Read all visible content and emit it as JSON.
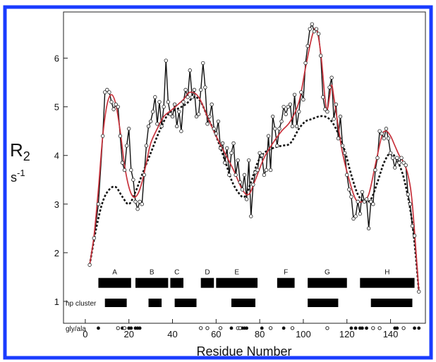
{
  "chart_data": {
    "type": "line",
    "title": "",
    "xlabel": "Residue Number",
    "ylabel": "R",
    "ylabel_subscript": "2",
    "yunit": "s",
    "yunit_superscript": "-1",
    "xlim": [
      -10,
      156
    ],
    "ylim": [
      0.55,
      6.95
    ],
    "xticks": [
      0,
      20,
      40,
      60,
      80,
      100,
      120,
      140
    ],
    "yticks": [
      1,
      2,
      3,
      4,
      5,
      6
    ],
    "grid": false,
    "legend": "none",
    "colors": {
      "frame": "#1a3cff",
      "experimental": "#111111",
      "fit": "#c8323c",
      "model": "#111111",
      "bars": "#000000"
    },
    "series": [
      {
        "style": "black-line-open-circles",
        "points": [
          [
            2,
            1.75
          ],
          [
            4,
            2.3
          ],
          [
            6,
            3.0
          ],
          [
            8,
            4.4
          ],
          [
            9,
            5.3
          ],
          [
            10,
            5.35
          ],
          [
            11,
            5.3
          ],
          [
            12,
            5.1
          ],
          [
            13,
            4.95
          ],
          [
            14,
            5.05
          ],
          [
            15,
            5.0
          ],
          [
            16,
            4.4
          ],
          [
            17,
            3.85
          ],
          [
            18,
            3.7
          ],
          [
            19,
            4.2
          ],
          [
            20,
            4.55
          ],
          [
            21,
            3.7
          ],
          [
            22,
            3.5
          ],
          [
            23,
            3.05
          ],
          [
            24,
            2.9
          ],
          [
            25,
            3.05
          ],
          [
            26,
            3.0
          ],
          [
            27,
            3.6
          ],
          [
            28,
            4.2
          ],
          [
            29,
            4.6
          ],
          [
            30,
            4.7
          ],
          [
            31,
            4.9
          ],
          [
            32,
            5.2
          ],
          [
            33,
            4.65
          ],
          [
            34,
            5.1
          ],
          [
            35,
            4.6
          ],
          [
            36,
            5.0
          ],
          [
            37,
            5.95
          ],
          [
            38,
            5.1
          ],
          [
            39,
            4.85
          ],
          [
            40,
            4.8
          ],
          [
            41,
            5.05
          ],
          [
            42,
            4.6
          ],
          [
            43,
            4.9
          ],
          [
            44,
            4.5
          ],
          [
            45,
            5.1
          ],
          [
            46,
            5.35
          ],
          [
            47,
            5.2
          ],
          [
            48,
            5.75
          ],
          [
            49,
            5.2
          ],
          [
            50,
            5.35
          ],
          [
            51,
            4.8
          ],
          [
            52,
            4.85
          ],
          [
            53,
            5.35
          ],
          [
            54,
            5.9
          ],
          [
            55,
            5.4
          ],
          [
            56,
            4.65
          ],
          [
            57,
            4.8
          ],
          [
            58,
            5.05
          ],
          [
            59,
            4.55
          ],
          [
            60,
            4.45
          ],
          [
            61,
            4.7
          ],
          [
            62,
            4.15
          ],
          [
            63,
            4.25
          ],
          [
            64,
            3.85
          ],
          [
            65,
            4.15
          ],
          [
            66,
            3.6
          ],
          [
            67,
            4.05
          ],
          [
            68,
            4.25
          ],
          [
            69,
            3.6
          ],
          [
            70,
            3.9
          ],
          [
            71,
            3.45
          ],
          [
            72,
            3.3
          ],
          [
            73,
            3.6
          ],
          [
            74,
            3.1
          ],
          [
            75,
            3.9
          ],
          [
            76,
            2.75
          ],
          [
            77,
            3.4
          ],
          [
            78,
            3.65
          ],
          [
            79,
            3.7
          ],
          [
            80,
            4.05
          ],
          [
            81,
            4.0
          ],
          [
            82,
            3.6
          ],
          [
            83,
            3.7
          ],
          [
            84,
            4.4
          ],
          [
            85,
            3.7
          ],
          [
            86,
            4.8
          ],
          [
            87,
            4.55
          ],
          [
            88,
            4.2
          ],
          [
            89,
            4.55
          ],
          [
            90,
            4.7
          ],
          [
            91,
            5.0
          ],
          [
            92,
            4.85
          ],
          [
            93,
            5.0
          ],
          [
            94,
            5.05
          ],
          [
            95,
            4.6
          ],
          [
            96,
            5.25
          ],
          [
            97,
            4.6
          ],
          [
            98,
            4.9
          ],
          [
            99,
            5.3
          ],
          [
            100,
            5.15
          ],
          [
            101,
            5.9
          ],
          [
            102,
            6.25
          ],
          [
            103,
            6.6
          ],
          [
            104,
            6.7
          ],
          [
            105,
            6.55
          ],
          [
            106,
            6.6
          ],
          [
            107,
            6.5
          ],
          [
            108,
            6.05
          ],
          [
            109,
            5.2
          ],
          [
            110,
            4.95
          ],
          [
            111,
            4.9
          ],
          [
            112,
            5.4
          ],
          [
            113,
            5.6
          ],
          [
            114,
            4.75
          ],
          [
            115,
            5.05
          ],
          [
            116,
            4.35
          ],
          [
            117,
            4.8
          ],
          [
            118,
            4.2
          ],
          [
            119,
            4.05
          ],
          [
            120,
            3.6
          ],
          [
            121,
            3.3
          ],
          [
            122,
            3.15
          ],
          [
            123,
            2.7
          ],
          [
            124,
            2.75
          ],
          [
            125,
            3.05
          ],
          [
            126,
            2.8
          ],
          [
            127,
            3.25
          ],
          [
            128,
            3.05
          ],
          [
            129,
            3.1
          ],
          [
            130,
            2.5
          ],
          [
            131,
            3.05
          ],
          [
            132,
            3.0
          ],
          [
            133,
            3.7
          ],
          [
            134,
            3.95
          ],
          [
            135,
            4.5
          ],
          [
            136,
            4.45
          ],
          [
            137,
            4.35
          ],
          [
            138,
            4.55
          ],
          [
            139,
            4.35
          ],
          [
            140,
            4.05
          ],
          [
            141,
            3.95
          ],
          [
            142,
            3.75
          ],
          [
            143,
            3.95
          ],
          [
            144,
            3.85
          ],
          [
            145,
            3.95
          ],
          [
            146,
            3.85
          ],
          [
            147,
            3.8
          ],
          [
            148,
            3.2
          ],
          [
            149,
            3.0
          ],
          [
            150,
            2.55
          ],
          [
            151,
            2.35
          ],
          [
            153,
            1.2
          ]
        ]
      },
      {
        "style": "red-smooth-line",
        "points": [
          [
            2,
            1.75
          ],
          [
            4,
            2.35
          ],
          [
            6,
            3.3
          ],
          [
            8,
            4.4
          ],
          [
            10,
            5.05
          ],
          [
            12,
            5.25
          ],
          [
            14,
            5.05
          ],
          [
            16,
            4.5
          ],
          [
            18,
            3.8
          ],
          [
            20,
            3.35
          ],
          [
            22,
            3.15
          ],
          [
            24,
            3.2
          ],
          [
            26,
            3.45
          ],
          [
            28,
            3.85
          ],
          [
            30,
            4.25
          ],
          [
            33,
            4.55
          ],
          [
            36,
            4.8
          ],
          [
            40,
            4.95
          ],
          [
            45,
            5.15
          ],
          [
            48,
            5.3
          ],
          [
            52,
            5.2
          ],
          [
            56,
            4.8
          ],
          [
            60,
            4.4
          ],
          [
            64,
            4.05
          ],
          [
            68,
            3.7
          ],
          [
            72,
            3.3
          ],
          [
            75,
            3.2
          ],
          [
            78,
            3.5
          ],
          [
            82,
            3.95
          ],
          [
            86,
            4.25
          ],
          [
            90,
            4.5
          ],
          [
            94,
            4.7
          ],
          [
            98,
            5.1
          ],
          [
            101,
            5.8
          ],
          [
            104,
            6.45
          ],
          [
            106,
            6.6
          ],
          [
            108,
            6.1
          ],
          [
            110,
            5.15
          ],
          [
            111,
            4.95
          ],
          [
            112,
            5.2
          ],
          [
            113,
            5.45
          ],
          [
            114,
            5.2
          ],
          [
            116,
            4.6
          ],
          [
            118,
            4.05
          ],
          [
            121,
            3.5
          ],
          [
            124,
            3.1
          ],
          [
            127,
            3.05
          ],
          [
            130,
            3.2
          ],
          [
            133,
            3.8
          ],
          [
            136,
            4.4
          ],
          [
            138,
            4.5
          ],
          [
            140,
            4.4
          ],
          [
            142,
            4.2
          ],
          [
            144,
            4.0
          ],
          [
            146,
            3.85
          ],
          [
            148,
            3.6
          ],
          [
            150,
            3.0
          ],
          [
            153,
            1.2
          ]
        ]
      },
      {
        "style": "black-dotted-line",
        "points": [
          [
            2,
            1.75
          ],
          [
            5,
            2.5
          ],
          [
            8,
            3.05
          ],
          [
            11,
            3.3
          ],
          [
            14,
            3.35
          ],
          [
            17,
            3.15
          ],
          [
            20,
            3.0
          ],
          [
            23,
            3.25
          ],
          [
            26,
            3.6
          ],
          [
            30,
            4.05
          ],
          [
            34,
            4.5
          ],
          [
            38,
            4.85
          ],
          [
            42,
            4.95
          ],
          [
            46,
            5.05
          ],
          [
            50,
            5.2
          ],
          [
            53,
            5.1
          ],
          [
            56,
            4.8
          ],
          [
            60,
            4.4
          ],
          [
            64,
            3.9
          ],
          [
            67,
            3.5
          ],
          [
            70,
            3.25
          ],
          [
            73,
            3.15
          ],
          [
            76,
            3.45
          ],
          [
            79,
            3.85
          ],
          [
            82,
            4.05
          ],
          [
            86,
            4.15
          ],
          [
            90,
            4.2
          ],
          [
            94,
            4.25
          ],
          [
            98,
            4.55
          ],
          [
            101,
            4.7
          ],
          [
            104,
            4.75
          ],
          [
            107,
            4.8
          ],
          [
            110,
            4.8
          ],
          [
            113,
            4.7
          ],
          [
            116,
            4.45
          ],
          [
            119,
            4.1
          ],
          [
            122,
            3.6
          ],
          [
            125,
            3.2
          ],
          [
            128,
            3.05
          ],
          [
            131,
            3.1
          ],
          [
            134,
            3.45
          ],
          [
            137,
            3.85
          ],
          [
            140,
            4.05
          ],
          [
            143,
            3.9
          ],
          [
            146,
            3.55
          ],
          [
            149,
            2.9
          ],
          [
            151,
            2.2
          ],
          [
            153,
            1.2
          ]
        ]
      }
    ],
    "annotations": {
      "segments": {
        "y": 1.38,
        "items": [
          {
            "label": "A",
            "start": 6,
            "end": 21
          },
          {
            "label": "B",
            "start": 23,
            "end": 38
          },
          {
            "label": "C",
            "start": 39,
            "end": 45
          },
          {
            "label": "D",
            "start": 53,
            "end": 59
          },
          {
            "label": "E",
            "start": 60,
            "end": 79
          },
          {
            "label": "F",
            "start": 88,
            "end": 96
          },
          {
            "label": "G",
            "start": 102,
            "end": 120
          },
          {
            "label": "H",
            "start": 126,
            "end": 151
          }
        ]
      },
      "hp_cluster": {
        "label": "hp cluster",
        "y": 0.97,
        "items": [
          {
            "start": 9,
            "end": 19
          },
          {
            "start": 29,
            "end": 35
          },
          {
            "start": 41,
            "end": 51
          },
          {
            "start": 67,
            "end": 78
          },
          {
            "start": 102,
            "end": 116
          },
          {
            "start": 131,
            "end": 150
          }
        ]
      },
      "gly_ala": {
        "label": "gly/ala",
        "y": 0.45,
        "filled": [
          6,
          17,
          20,
          21,
          23,
          24,
          25,
          67,
          72,
          73,
          74,
          81,
          91,
          122,
          124,
          126,
          127,
          129,
          142,
          143,
          151,
          153
        ],
        "open": [
          15,
          18,
          53,
          56,
          62,
          70,
          71,
          85,
          95,
          111,
          132,
          135,
          146
        ]
      }
    }
  }
}
